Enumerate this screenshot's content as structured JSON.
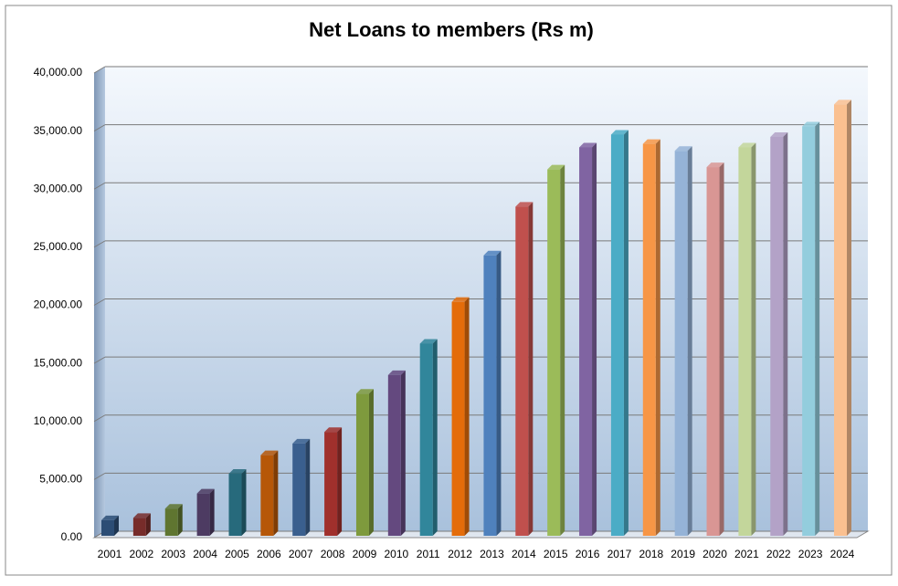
{
  "chart_data": {
    "type": "bar",
    "title": "Net Loans to members (Rs m)",
    "categories": [
      "2001",
      "2002",
      "2003",
      "2004",
      "2005",
      "2006",
      "2007",
      "2008",
      "2009",
      "2010",
      "2011",
      "2012",
      "2013",
      "2014",
      "2015",
      "2016",
      "2017",
      "2018",
      "2019",
      "2020",
      "2021",
      "2022",
      "2023",
      "2024"
    ],
    "values": [
      1500,
      1700,
      2500,
      3800,
      5500,
      7100,
      8100,
      9100,
      12400,
      14000,
      16700,
      20300,
      24300,
      28500,
      31700,
      33600,
      34700,
      33900,
      33300,
      31900,
      33600,
      34500,
      35400,
      37300
    ],
    "colors": [
      "#2c4d75",
      "#772c2a",
      "#5f7530",
      "#4d3b62",
      "#276a7c",
      "#b65708",
      "#3a5f8e",
      "#a0302c",
      "#7e9a3d",
      "#64497f",
      "#31869b",
      "#e46c0a",
      "#4f81bd",
      "#c0504d",
      "#9bbb59",
      "#8064a2",
      "#4bacc6",
      "#f79646",
      "#95b3d7",
      "#d99694",
      "#c3d69b",
      "#b3a2c7",
      "#93cddd",
      "#fac090"
    ],
    "ylim": [
      0,
      40000
    ],
    "yticks": [
      {
        "value": 0,
        "label": "0.00"
      },
      {
        "value": 5000,
        "label": "5,000.00"
      },
      {
        "value": 10000,
        "label": "10,000.00"
      },
      {
        "value": 15000,
        "label": "15,000.00"
      },
      {
        "value": 20000,
        "label": "20,000.00"
      },
      {
        "value": 25000,
        "label": "25,000.00"
      },
      {
        "value": 30000,
        "label": "30,000.00"
      },
      {
        "value": 35000,
        "label": "35,000.00"
      },
      {
        "value": 40000,
        "label": "40,000.00"
      }
    ],
    "grid": true
  }
}
